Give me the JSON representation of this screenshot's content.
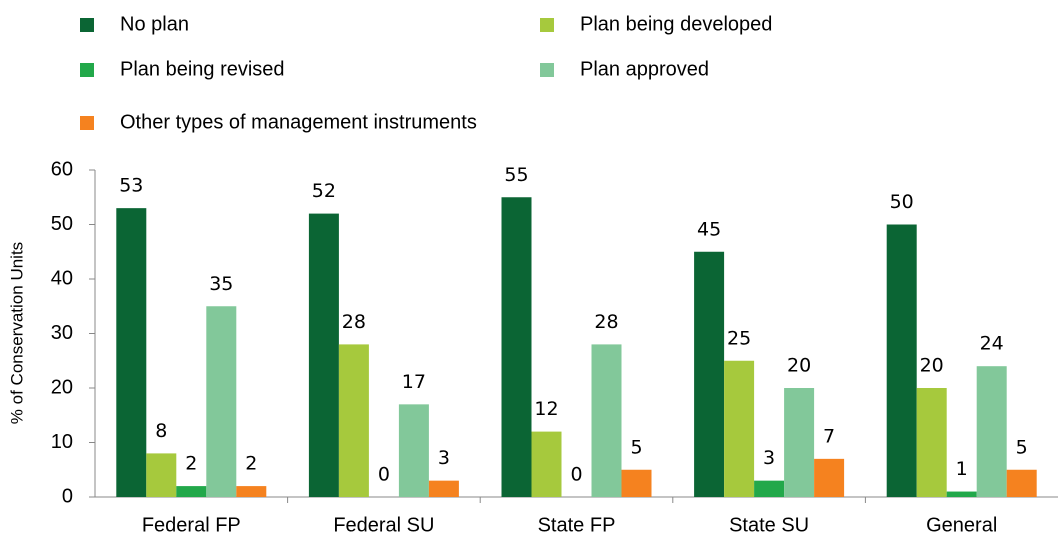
{
  "chart_data": {
    "type": "bar",
    "y_label": "% of Conservation Units",
    "categories": [
      "Federal FP",
      "Federal SU",
      "State FP",
      "State SU",
      "General"
    ],
    "series": [
      {
        "name": "No plan",
        "color": "#0b6534",
        "values": [
          53,
          52,
          55,
          45,
          50
        ]
      },
      {
        "name": "Plan being developed",
        "color": "#a6c93d",
        "values": [
          8,
          28,
          12,
          25,
          20
        ]
      },
      {
        "name": "Plan being revised",
        "color": "#22a84a",
        "values": [
          2,
          0,
          0,
          3,
          1
        ]
      },
      {
        "name": "Plan approved",
        "color": "#82c89a",
        "values": [
          35,
          17,
          28,
          20,
          24
        ]
      },
      {
        "name": "Other types of management instruments",
        "color": "#f5821f",
        "values": [
          2,
          3,
          5,
          7,
          5
        ]
      }
    ],
    "ylim": [
      0,
      60
    ],
    "yticks": [
      0,
      10,
      20,
      30,
      40,
      50,
      60
    ]
  }
}
